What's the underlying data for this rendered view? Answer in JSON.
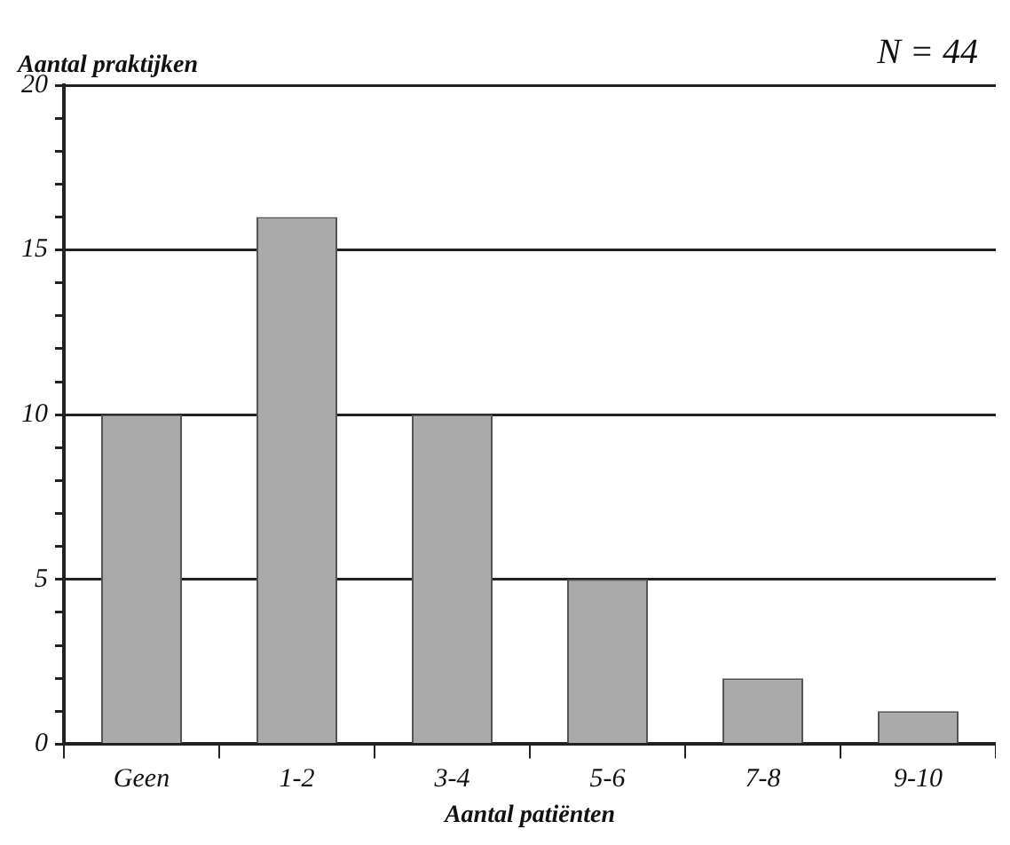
{
  "chart_data": {
    "type": "bar",
    "xlabel": "Aantal patiënten",
    "ylabel": "Aantal praktijken",
    "annotations": [
      "N = 44"
    ],
    "categories": [
      "Geen",
      "1-2",
      "3-4",
      "5-6",
      "7-8",
      "9-10"
    ],
    "values": [
      10,
      16,
      10,
      5,
      2,
      1
    ],
    "color": "#aaaaaa",
    "ylim": [
      0,
      20
    ],
    "yticks": [
      0,
      {
        "value": 1,
        "label": null
      },
      {
        "value": 2,
        "label": null
      },
      {
        "value": 3,
        "label": null
      },
      {
        "value": 4,
        "label": null
      },
      5,
      {
        "value": 6,
        "label": null
      },
      {
        "value": 7,
        "label": null
      },
      {
        "value": 8,
        "label": null
      },
      {
        "value": 9,
        "label": null
      },
      10,
      {
        "value": 11,
        "label": null
      },
      {
        "value": 12,
        "label": null
      },
      {
        "value": 13,
        "label": null
      },
      {
        "value": 14,
        "label": null
      },
      15,
      {
        "value": 16,
        "label": null
      },
      {
        "value": 17,
        "label": null
      },
      {
        "value": 18,
        "label": null
      },
      {
        "value": 19,
        "label": null
      },
      20
    ],
    "grid": "y"
  }
}
